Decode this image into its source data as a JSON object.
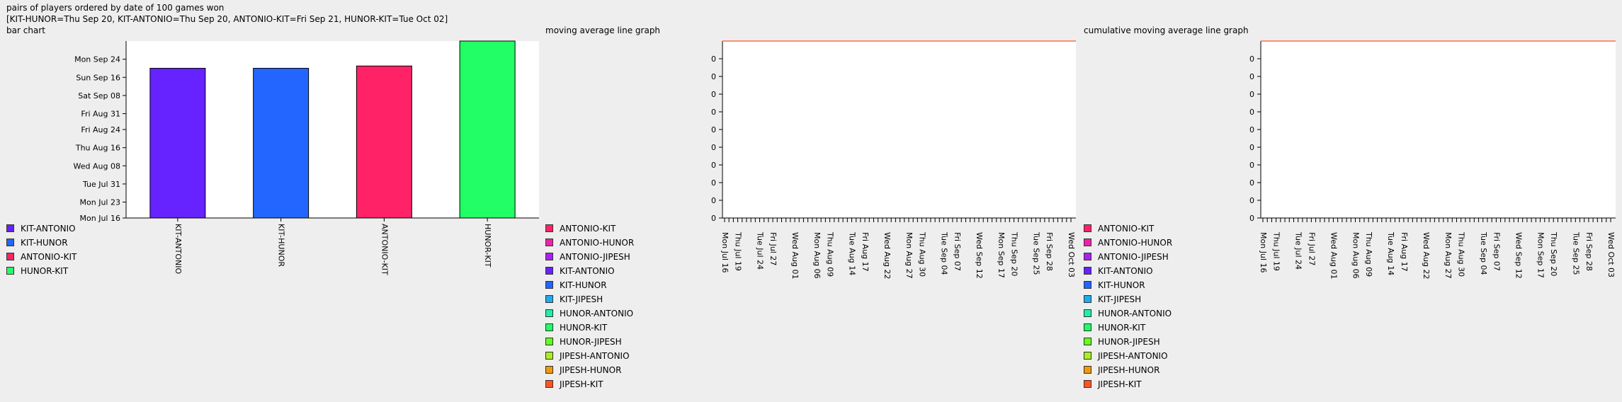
{
  "header": {
    "title": "pairs of players ordered by date of 100 games won",
    "summary": "[KIT-HUNOR=Thu Sep 20, KIT-ANTONIO=Thu Sep 20, ANTONIO-KIT=Fri Sep 21, HUNOR-KIT=Tue Oct 02]",
    "bar_label": "bar chart",
    "mavg_label": "moving average line graph",
    "cmavg_label": "cumulative moving average line graph"
  },
  "legend_bar": [
    {
      "label": "KIT-ANTONIO",
      "color": "#6622ff"
    },
    {
      "label": "KIT-HUNOR",
      "color": "#2266ff"
    },
    {
      "label": "ANTONIO-KIT",
      "color": "#ff2266"
    },
    {
      "label": "HUNOR-KIT",
      "color": "#22ff66"
    }
  ],
  "legend_lines": [
    {
      "label": "ANTONIO-KIT",
      "color": "#ff2266"
    },
    {
      "label": "ANTONIO-HUNOR",
      "color": "#ee22aa"
    },
    {
      "label": "ANTONIO-JIPESH",
      "color": "#aa22ee"
    },
    {
      "label": "KIT-ANTONIO",
      "color": "#6622ff"
    },
    {
      "label": "KIT-HUNOR",
      "color": "#2266ff"
    },
    {
      "label": "KIT-JIPESH",
      "color": "#22aaee"
    },
    {
      "label": "HUNOR-ANTONIO",
      "color": "#22eeaa"
    },
    {
      "label": "HUNOR-KIT",
      "color": "#22ff66"
    },
    {
      "label": "HUNOR-JIPESH",
      "color": "#66ff22"
    },
    {
      "label": "JIPESH-ANTONIO",
      "color": "#aaee22"
    },
    {
      "label": "JIPESH-HUNOR",
      "color": "#ee9911"
    },
    {
      "label": "JIPESH-KIT",
      "color": "#ff5522"
    }
  ],
  "chart_data": [
    {
      "type": "bar",
      "title": "bar chart",
      "categories": [
        "KIT-ANTONIO",
        "KIT-HUNOR",
        "ANTONIO-KIT",
        "HUNOR-KIT"
      ],
      "values": [
        "Thu Sep 20",
        "Thu Sep 20",
        "Fri Sep 21",
        "Tue Oct 02"
      ],
      "colors": [
        "#6622ff",
        "#2266ff",
        "#ff2266",
        "#22ff66"
      ],
      "y_ticks": [
        "Mon Jul 16",
        "Mon Jul 23",
        "Tue Jul 31",
        "Wed Aug 08",
        "Thu Aug 16",
        "Fri Aug 24",
        "Fri Aug 31",
        "Sat Sep 08",
        "Sun Sep 16",
        "Mon Sep 24"
      ],
      "ylim": [
        "Mon Jul 16",
        "Tue Oct 02"
      ],
      "grid": false,
      "legend": "bottom-left"
    },
    {
      "type": "line",
      "title": "moving average line graph",
      "x_ticks": [
        "Mon Jul 16",
        "Thu Jul 19",
        "Tue Jul 24",
        "Fri Jul 27",
        "Wed Aug 01",
        "Mon Aug 06",
        "Thu Aug 09",
        "Tue Aug 14",
        "Fri Aug 17",
        "Wed Aug 22",
        "Mon Aug 27",
        "Thu Aug 30",
        "Tue Sep 04",
        "Fri Sep 07",
        "Wed Sep 12",
        "Mon Sep 17",
        "Thu Sep 20",
        "Tue Sep 25",
        "Fri Sep 28",
        "Wed Oct 03"
      ],
      "y_ticks": [
        "0",
        "0",
        "0",
        "0",
        "0",
        "0",
        "0",
        "0",
        "0",
        "0"
      ],
      "series": [
        {
          "name": "JIPESH-KIT",
          "values": [
            0,
            0
          ],
          "color": "#ff5522"
        }
      ],
      "grid": false,
      "legend": "bottom-left"
    },
    {
      "type": "line",
      "title": "cumulative moving average line graph",
      "x_ticks": [
        "Mon Jul 16",
        "Thu Jul 19",
        "Tue Jul 24",
        "Fri Jul 27",
        "Wed Aug 01",
        "Mon Aug 06",
        "Thu Aug 09",
        "Tue Aug 14",
        "Fri Aug 17",
        "Wed Aug 22",
        "Mon Aug 27",
        "Thu Aug 30",
        "Tue Sep 04",
        "Fri Sep 07",
        "Wed Sep 12",
        "Mon Sep 17",
        "Thu Sep 20",
        "Tue Sep 25",
        "Fri Sep 28",
        "Wed Oct 03"
      ],
      "y_ticks": [
        "0",
        "0",
        "0",
        "0",
        "0",
        "0",
        "0",
        "0",
        "0",
        "0"
      ],
      "series": [
        {
          "name": "JIPESH-KIT",
          "values": [
            0,
            0
          ],
          "color": "#ff5522"
        }
      ],
      "grid": false,
      "legend": "bottom-left"
    }
  ]
}
